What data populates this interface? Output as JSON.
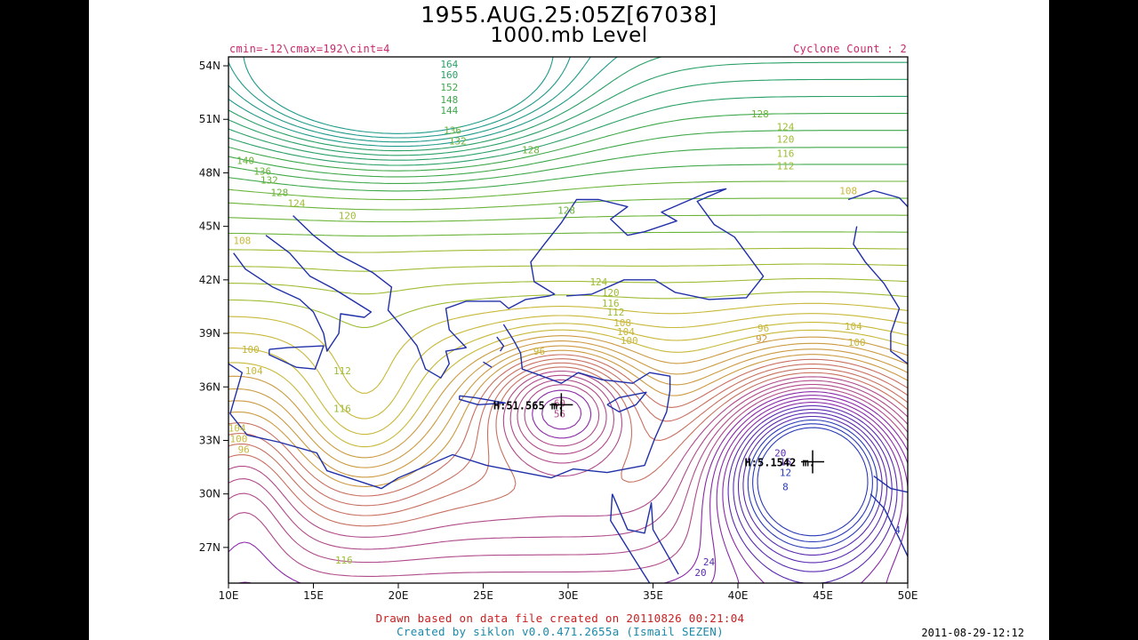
{
  "header": {
    "title_line1": "1955.AUG.25:05Z[67038]",
    "title_line2": "1000.mb Level",
    "contour_info": "cmin=-12\\cmax=192\\cint=4",
    "cyclone_count": "Cyclone Count : 2"
  },
  "axes": {
    "lat_labels": [
      "54N",
      "51N",
      "48N",
      "45N",
      "42N",
      "39N",
      "36N",
      "33N",
      "30N",
      "27N"
    ],
    "lat_values": [
      54,
      51,
      48,
      45,
      42,
      39,
      36,
      33,
      30,
      27
    ],
    "lon_labels": [
      "10E",
      "15E",
      "20E",
      "25E",
      "30E",
      "35E",
      "40E",
      "45E",
      "50E"
    ],
    "lon_values": [
      10,
      15,
      20,
      25,
      30,
      35,
      40,
      45,
      50
    ],
    "lat_range": [
      25,
      54.5
    ],
    "lon_range": [
      10,
      50
    ]
  },
  "centers": [
    {
      "label": "H:51.565 m.",
      "lon": 29.6,
      "lat": 35.0
    },
    {
      "label": "H:5.1542 m.",
      "lon": 44.4,
      "lat": 31.8
    }
  ],
  "contour_labels": [
    {
      "text": "164",
      "lon": 23.0,
      "lat": 53.9
    },
    {
      "text": "160",
      "lon": 23.0,
      "lat": 53.3
    },
    {
      "text": "152",
      "lon": 23.0,
      "lat": 52.6
    },
    {
      "text": "148",
      "lon": 23.0,
      "lat": 51.9
    },
    {
      "text": "144",
      "lon": 23.0,
      "lat": 51.3
    },
    {
      "text": "136",
      "lon": 23.2,
      "lat": 50.2
    },
    {
      "text": "132",
      "lon": 23.5,
      "lat": 49.6
    },
    {
      "text": "128",
      "lon": 27.8,
      "lat": 49.1
    },
    {
      "text": "140",
      "lon": 11.0,
      "lat": 48.5
    },
    {
      "text": "136",
      "lon": 12.0,
      "lat": 47.9
    },
    {
      "text": "132",
      "lon": 12.4,
      "lat": 47.4
    },
    {
      "text": "128",
      "lon": 13.0,
      "lat": 46.7
    },
    {
      "text": "124",
      "lon": 14.0,
      "lat": 46.1
    },
    {
      "text": "120",
      "lon": 17.0,
      "lat": 45.4
    },
    {
      "text": "108",
      "lon": 10.8,
      "lat": 44.0
    },
    {
      "text": "128",
      "lon": 29.9,
      "lat": 45.7
    },
    {
      "text": "128",
      "lon": 41.3,
      "lat": 51.1
    },
    {
      "text": "124",
      "lon": 42.8,
      "lat": 50.4
    },
    {
      "text": "120",
      "lon": 42.8,
      "lat": 49.7
    },
    {
      "text": "116",
      "lon": 42.8,
      "lat": 48.9
    },
    {
      "text": "112",
      "lon": 42.8,
      "lat": 48.2
    },
    {
      "text": "108",
      "lon": 46.5,
      "lat": 46.8
    },
    {
      "text": "124",
      "lon": 31.8,
      "lat": 41.7
    },
    {
      "text": "120",
      "lon": 32.5,
      "lat": 41.1
    },
    {
      "text": "116",
      "lon": 32.5,
      "lat": 40.5
    },
    {
      "text": "112",
      "lon": 32.8,
      "lat": 40.0
    },
    {
      "text": "108",
      "lon": 33.2,
      "lat": 39.4
    },
    {
      "text": "104",
      "lon": 33.4,
      "lat": 38.9
    },
    {
      "text": "100",
      "lon": 33.6,
      "lat": 38.4
    },
    {
      "text": "96",
      "lon": 41.5,
      "lat": 39.1
    },
    {
      "text": "92",
      "lon": 41.4,
      "lat": 38.5
    },
    {
      "text": "104",
      "lon": 46.8,
      "lat": 39.2
    },
    {
      "text": "100",
      "lon": 47.0,
      "lat": 38.3
    },
    {
      "text": "100",
      "lon": 11.3,
      "lat": 37.9
    },
    {
      "text": "104",
      "lon": 11.5,
      "lat": 36.7
    },
    {
      "text": "112",
      "lon": 16.7,
      "lat": 36.7
    },
    {
      "text": "116",
      "lon": 16.7,
      "lat": 34.6
    },
    {
      "text": "96",
      "lon": 28.3,
      "lat": 37.8
    },
    {
      "text": "60",
      "lon": 29.5,
      "lat": 34.9
    },
    {
      "text": "56",
      "lon": 29.5,
      "lat": 34.3
    },
    {
      "text": "104",
      "lon": 10.5,
      "lat": 33.5
    },
    {
      "text": "100",
      "lon": 10.6,
      "lat": 32.9
    },
    {
      "text": "96",
      "lon": 10.9,
      "lat": 32.3
    },
    {
      "text": "16",
      "lon": 42.8,
      "lat": 31.6
    },
    {
      "text": "12",
      "lon": 42.8,
      "lat": 31.0
    },
    {
      "text": "8",
      "lon": 42.8,
      "lat": 30.2
    },
    {
      "text": "20",
      "lon": 42.5,
      "lat": 32.1
    },
    {
      "text": "116",
      "lon": 16.8,
      "lat": 26.1
    },
    {
      "text": "24",
      "lon": 38.3,
      "lat": 26.0
    },
    {
      "text": "20",
      "lon": 37.8,
      "lat": 25.4
    },
    {
      "text": "4",
      "lon": 49.4,
      "lat": 27.8
    }
  ],
  "colors": {
    "coastline": "#2030a8",
    "frame": "#000000",
    "ramp": [
      "#1f9a8a",
      "#2aa066",
      "#3ea84a",
      "#6ab43a",
      "#9ebc34",
      "#c8b838",
      "#cc9a40",
      "#c87060",
      "#b04a8a",
      "#8a2aa8",
      "#5a2ab0",
      "#2a3ab8"
    ]
  },
  "footer": {
    "data_note": "Drawn based on data file created on 20110826 00:21:04",
    "credit": "Created by siklon v0.0.471.2655a (Ismail SEZEN)",
    "timestamp": "2011-08-29-12:12"
  }
}
